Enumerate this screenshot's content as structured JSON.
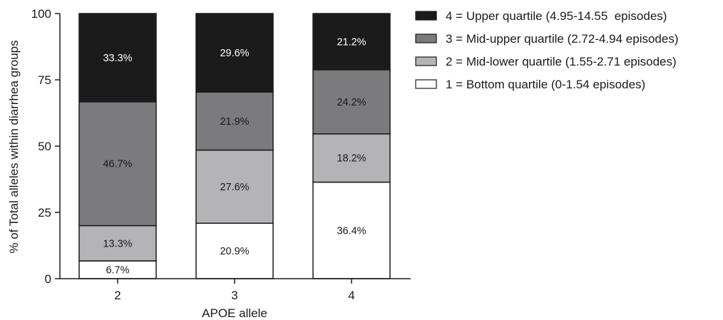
{
  "chart_data": {
    "type": "bar",
    "stacked": true,
    "categories": [
      "2",
      "3",
      "4"
    ],
    "xlabel": "APOE allele",
    "ylabel": "% of Total alleles within diarrhea groups",
    "ylim": [
      0,
      100
    ],
    "yticks": [
      0,
      25,
      50,
      75,
      100
    ],
    "legend_position": "top-right",
    "series": [
      {
        "name": "1 = Bottom quartile (0-1.54 episodes)",
        "color": "#ffffff",
        "values": [
          6.7,
          20.9,
          36.4
        ],
        "labels": [
          "6.7%",
          "20.9%",
          "36.4%"
        ]
      },
      {
        "name": "2 = Mid-lower quartile (1.55-2.71 episodes)",
        "color": "#b4b4b6",
        "values": [
          13.3,
          27.6,
          18.2
        ],
        "labels": [
          "13.3%",
          "27.6%",
          "18.2%"
        ]
      },
      {
        "name": "3 = Mid-upper quartile (2.72-4.94 episodes)",
        "color": "#7b7b7d",
        "values": [
          46.7,
          21.9,
          24.2
        ],
        "labels": [
          "46.7%",
          "21.9%",
          "24.2%"
        ]
      },
      {
        "name": "4 = Upper quartile (4.95-14.55  episodes)",
        "color": "#1b1b1b",
        "values": [
          33.3,
          29.6,
          21.2
        ],
        "labels": [
          "33.3%",
          "29.6%",
          "21.2%"
        ]
      }
    ]
  }
}
